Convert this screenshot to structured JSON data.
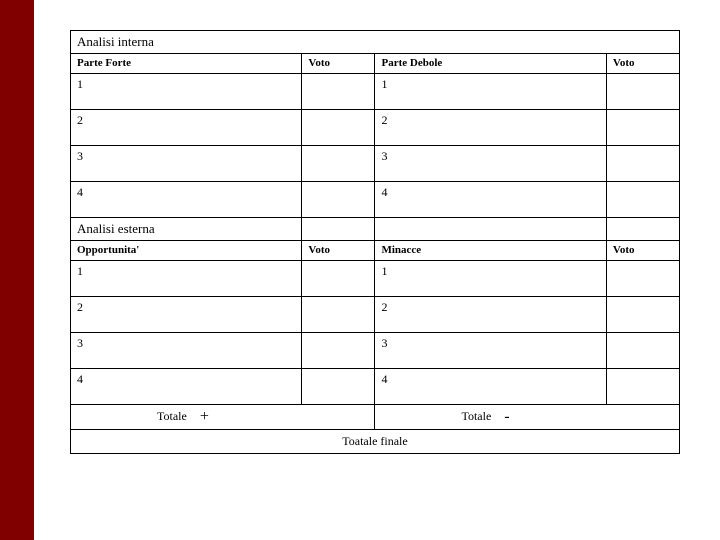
{
  "sidebar": {
    "color": "#800000"
  },
  "internal": {
    "title": "Analisi interna",
    "left_header": "Parte Forte",
    "right_header": "Parte Debole",
    "vote_label": "Voto",
    "rows": {
      "r1l": "1",
      "r1r": "1",
      "r2l": "2",
      "r2r": "2",
      "r3l": "3",
      "r3r": "3",
      "r4l": "4",
      "r4r": "4"
    }
  },
  "external": {
    "title": "Analisi esterna",
    "left_header": "Opportunita'",
    "right_header": "Minacce",
    "vote_label": "Voto",
    "rows": {
      "r1l": "1",
      "r1r": "1",
      "r2l": "2",
      "r2r": "2",
      "r3l": "3",
      "r3r": "3",
      "r4l": "4",
      "r4r": "4"
    }
  },
  "totals": {
    "left_label": "Totale",
    "left_sign": "+",
    "right_label": "Totale",
    "right_sign": "-",
    "final_label": "Toatale finale"
  }
}
